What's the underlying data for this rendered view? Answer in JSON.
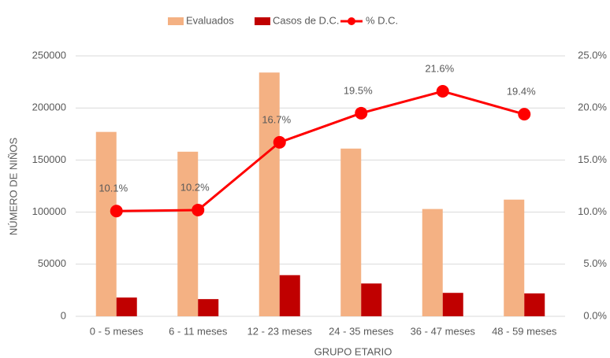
{
  "chart_data": {
    "type": "bar-line",
    "xlabel": "GRUPO ETARIO",
    "ylabel": "NÚMERO DE NIÑOS",
    "categories": [
      "0 - 5 meses",
      "6 - 11 meses",
      "12 - 23 meses",
      "24 - 35 meses",
      "36 - 47 meses",
      "48 - 59 meses"
    ],
    "series": [
      {
        "name": "Evaluados",
        "type": "bar",
        "color": "#f4b183",
        "values": [
          177000,
          158000,
          234000,
          161000,
          103000,
          112000
        ]
      },
      {
        "name": "Casos de D.C.",
        "type": "bar",
        "color": "#c00000",
        "values": [
          18000,
          16500,
          39500,
          31500,
          22500,
          22000
        ]
      },
      {
        "name": "% D.C.",
        "type": "line",
        "axis": "y2",
        "color": "#ff0000",
        "values": [
          10.1,
          10.2,
          16.7,
          19.5,
          21.6,
          19.4
        ],
        "value_labels": [
          "10.1%",
          "10.2%",
          "16.7%",
          "19.5%",
          "21.6%",
          "19.4%"
        ]
      }
    ],
    "ylim": [
      0,
      250000
    ],
    "yticks": [
      0,
      50000,
      100000,
      150000,
      200000,
      250000
    ],
    "y2lim": [
      0,
      25
    ],
    "y2ticks": [
      {
        "value": 0,
        "label": "0.0%"
      },
      {
        "value": 5,
        "label": "5.0%"
      },
      {
        "value": 10,
        "label": "10.0%"
      },
      {
        "value": 15,
        "label": "15.0%"
      },
      {
        "value": 20,
        "label": "20.0%"
      },
      {
        "value": 25,
        "label": "25.0%"
      }
    ],
    "grid": true,
    "legend": "top"
  }
}
